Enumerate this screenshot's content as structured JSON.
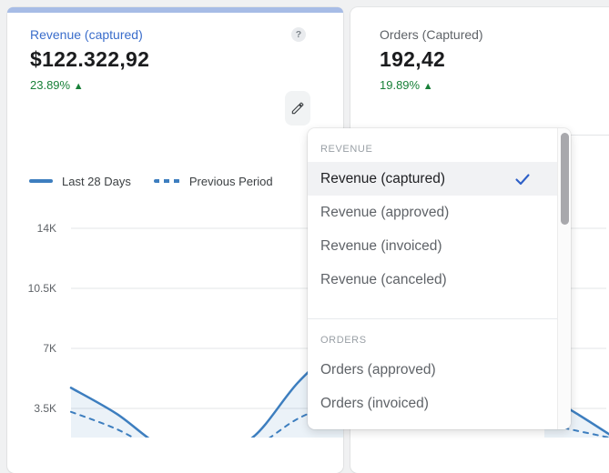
{
  "colors": {
    "background": "#f0f1f2",
    "accent_bar": "#a7bce6",
    "metric_link_blue": "#3a6dcb",
    "positive_green": "#188038",
    "chart_line_blue": "#3d7ebf",
    "checkmark_blue": "#2d5fc7"
  },
  "revenue_card": {
    "title": "Revenue (captured)",
    "value": "$122.322,92",
    "delta": "23.89%",
    "delta_arrow": "▲",
    "help_label": "?"
  },
  "orders_card": {
    "title": "Orders (Captured)",
    "value": "192,42",
    "delta": "19.89%",
    "delta_arrow": "▲"
  },
  "legend": {
    "current": "Last 28 Days",
    "previous": "Previous Period"
  },
  "dropdown": {
    "sections": [
      {
        "header": "REVENUE",
        "items": [
          {
            "label": "Revenue (captured)",
            "selected": true
          },
          {
            "label": "Revenue (approved)",
            "selected": false
          },
          {
            "label": "Revenue (invoiced)",
            "selected": false
          },
          {
            "label": "Revenue (canceled)",
            "selected": false
          }
        ]
      },
      {
        "header": "ORDERS",
        "items": [
          {
            "label": "Orders (approved)",
            "selected": false
          },
          {
            "label": "Orders (invoiced)",
            "selected": false
          }
        ]
      }
    ]
  },
  "chart_data": [
    {
      "type": "line",
      "title": "Revenue (captured) — Last 28 Days vs Previous Period",
      "y_ticks": [
        "14K",
        "10.5K",
        "7K",
        "3.5K"
      ],
      "y_tick_values_k": [
        14,
        10.5,
        7,
        3.5
      ],
      "ylim_k": [
        0,
        14
      ],
      "grid": true,
      "legend_position": "top-left",
      "occlusion": "center-right of plot hidden behind metric dropdown",
      "series": [
        {
          "name": "Last 28 Days",
          "style": "solid",
          "values_k": [
            4.7,
            3.2,
            1.3,
            0.8,
            1.8,
            5.0,
            7.5
          ]
        },
        {
          "name": "Previous Period",
          "style": "dashed",
          "values_k": [
            3.3,
            2.3,
            1.0,
            0.7,
            1.2,
            2.9,
            4.0
          ]
        }
      ]
    },
    {
      "type": "line",
      "title": "Orders (Captured)",
      "occlusion": "mostly hidden behind metric dropdown; only bottom-right sliver visible",
      "series": [
        {
          "name": "Last 28 Days",
          "style": "solid",
          "values_k_visible": [
            4.3,
            3.2,
            2.0
          ]
        },
        {
          "name": "Previous Period",
          "style": "dashed",
          "values_k_visible": [
            2.6,
            2.2,
            1.8
          ]
        }
      ]
    }
  ]
}
